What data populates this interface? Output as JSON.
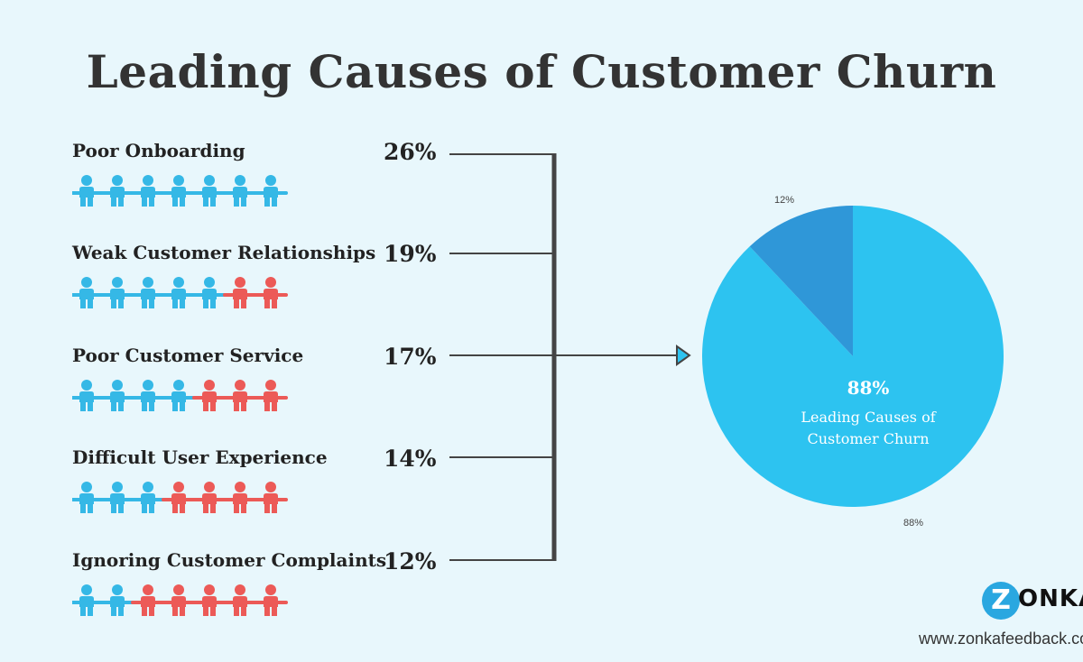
{
  "title": "Leading Causes of Customer Churn",
  "colors": {
    "background": "#e8f7fc",
    "person_filled": "#35b8e6",
    "person_highlight": "#ec5a57",
    "line": "#444444",
    "pie_main": "#2dc3f0",
    "pie_small": "#2f97d8"
  },
  "icons": {
    "person": "person-icon",
    "arrow": "arrow-right-icon"
  },
  "causes": [
    {
      "label": "Poor Onboarding",
      "percent": "26%",
      "blue_people": 7,
      "red_people": 0
    },
    {
      "label": "Weak Customer Relationships",
      "percent": "19%",
      "blue_people": 5,
      "red_people": 2
    },
    {
      "label": "Poor Customer Service",
      "percent": "17%",
      "blue_people": 4,
      "red_people": 3
    },
    {
      "label": "Difficult User Experience",
      "percent": "14%",
      "blue_people": 3,
      "red_people": 4
    },
    {
      "label": "Ignoring Customer Complaints",
      "percent": "12%",
      "blue_people": 2,
      "red_people": 5
    }
  ],
  "pie": {
    "center_percent": "88%",
    "center_label_line1": "Leading Causes of",
    "center_label_line2": "Customer Churn",
    "small_slice_label": "12%",
    "large_slice_label": "88%"
  },
  "chart_data": {
    "type": "pie",
    "title": "Leading Causes of Customer Churn",
    "categories": [
      "Leading Causes of Customer Churn",
      ""
    ],
    "values": [
      88,
      12
    ],
    "breakdown": {
      "type": "bar",
      "categories": [
        "Poor Onboarding",
        "Weak Customer Relationships",
        "Poor Customer Service",
        "Difficult User Experience",
        "Ignoring Customer Complaints"
      ],
      "values": [
        26,
        19,
        17,
        14,
        12
      ]
    }
  },
  "branding": {
    "logo_letter": "Z",
    "logo_word": "ONKA",
    "website": "www.zonkafeedback.com"
  }
}
